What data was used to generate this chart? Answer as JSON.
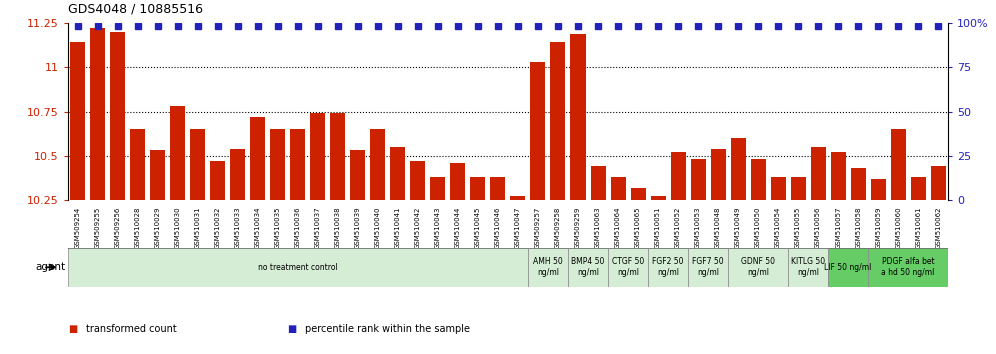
{
  "title": "GDS4048 / 10885516",
  "categories": [
    "GSM509254",
    "GSM509255",
    "GSM509256",
    "GSM510028",
    "GSM510029",
    "GSM510030",
    "GSM510031",
    "GSM510032",
    "GSM510033",
    "GSM510034",
    "GSM510035",
    "GSM510036",
    "GSM510037",
    "GSM510038",
    "GSM510039",
    "GSM510040",
    "GSM510041",
    "GSM510042",
    "GSM510043",
    "GSM510044",
    "GSM510045",
    "GSM510046",
    "GSM510047",
    "GSM509257",
    "GSM509258",
    "GSM509259",
    "GSM510063",
    "GSM510064",
    "GSM510065",
    "GSM510051",
    "GSM510052",
    "GSM510053",
    "GSM510048",
    "GSM510049",
    "GSM510050",
    "GSM510054",
    "GSM510055",
    "GSM510056",
    "GSM510057",
    "GSM510058",
    "GSM510059",
    "GSM510060",
    "GSM510061",
    "GSM510062"
  ],
  "bar_values": [
    11.14,
    11.22,
    11.2,
    10.65,
    10.53,
    10.78,
    10.65,
    10.47,
    10.54,
    10.72,
    10.65,
    10.65,
    10.74,
    10.74,
    10.53,
    10.65,
    10.55,
    10.47,
    10.38,
    10.46,
    10.38,
    10.38,
    10.27,
    11.03,
    11.14,
    11.19,
    10.44,
    10.38,
    10.32,
    10.27,
    10.52,
    10.48,
    10.54,
    10.6,
    10.48,
    10.38,
    10.38,
    10.55,
    10.52,
    10.43,
    10.37,
    10.65,
    10.38,
    10.44
  ],
  "bar_color": "#CC2200",
  "percentile_color": "#2222BB",
  "ylim_left": [
    10.25,
    11.25
  ],
  "ylim_right": [
    0,
    100
  ],
  "yticks_left": [
    10.25,
    10.5,
    10.75,
    11.0,
    11.25
  ],
  "yticks_right": [
    0,
    25,
    50,
    75,
    100
  ],
  "ytick_labels_left": [
    "10.25",
    "10.5",
    "10.75",
    "11",
    "11.25"
  ],
  "ytick_labels_right": [
    "0",
    "25",
    "50",
    "75",
    "100%"
  ],
  "grid_lines": [
    10.5,
    10.75,
    11.0
  ],
  "agent_groups": [
    {
      "label": "no treatment control",
      "start": 0,
      "end": 23,
      "color": "#d4edd4"
    },
    {
      "label": "AMH 50\nng/ml",
      "start": 23,
      "end": 25,
      "color": "#d4edd4"
    },
    {
      "label": "BMP4 50\nng/ml",
      "start": 25,
      "end": 27,
      "color": "#d4edd4"
    },
    {
      "label": "CTGF 50\nng/ml",
      "start": 27,
      "end": 29,
      "color": "#d4edd4"
    },
    {
      "label": "FGF2 50\nng/ml",
      "start": 29,
      "end": 31,
      "color": "#d4edd4"
    },
    {
      "label": "FGF7 50\nng/ml",
      "start": 31,
      "end": 33,
      "color": "#d4edd4"
    },
    {
      "label": "GDNF 50\nng/ml",
      "start": 33,
      "end": 36,
      "color": "#d4edd4"
    },
    {
      "label": "KITLG 50\nng/ml",
      "start": 36,
      "end": 38,
      "color": "#d4edd4"
    },
    {
      "label": "LIF 50 ng/ml",
      "start": 38,
      "end": 40,
      "color": "#66cc66"
    },
    {
      "label": "PDGF alfa bet\na hd 50 ng/ml",
      "start": 40,
      "end": 44,
      "color": "#66cc66"
    }
  ],
  "legend_entries": [
    {
      "label": "transformed count",
      "color": "#CC2200"
    },
    {
      "label": "percentile rank within the sample",
      "color": "#2222BB"
    }
  ],
  "agent_label": "agent"
}
